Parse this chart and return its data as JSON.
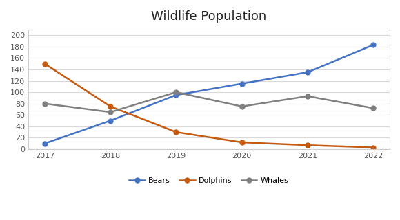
{
  "title": "Wildlife Population",
  "years": [
    2017,
    2018,
    2019,
    2020,
    2021,
    2022
  ],
  "series": {
    "Bears": {
      "values": [
        10,
        50,
        95,
        115,
        135,
        183
      ],
      "color": "#4472C4",
      "marker": "o"
    },
    "Dolphins": {
      "values": [
        150,
        75,
        30,
        12,
        7,
        3
      ],
      "color": "#C55A11",
      "marker": "o"
    },
    "Whales": {
      "values": [
        80,
        65,
        100,
        75,
        93,
        72
      ],
      "color": "#808080",
      "marker": "o"
    }
  },
  "ylim": [
    0,
    210
  ],
  "yticks": [
    0,
    20,
    40,
    60,
    80,
    100,
    120,
    140,
    160,
    180,
    200
  ],
  "fig_background": "#ffffff",
  "plot_background": "#ffffff",
  "border_color": "#cccccc",
  "grid_color": "#d9d9d9",
  "title_fontsize": 13,
  "legend_fontsize": 8,
  "tick_fontsize": 8,
  "title_fontweight": "normal"
}
